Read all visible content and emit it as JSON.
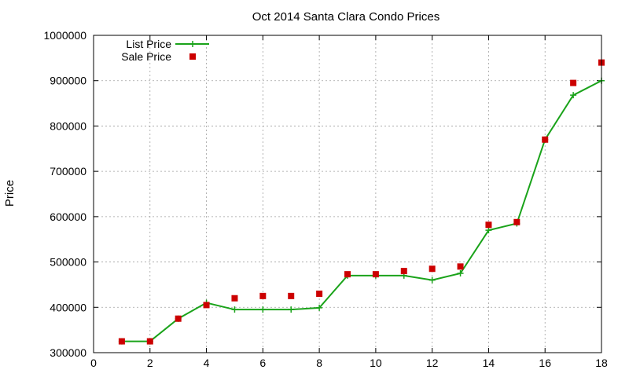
{
  "chart_data": {
    "type": "line",
    "title": "Oct 2014 Santa Clara Condo Prices",
    "xlabel": "",
    "ylabel": "Price",
    "xlim": [
      0,
      18
    ],
    "ylim": [
      300000,
      1000000
    ],
    "x_ticks": [
      0,
      2,
      4,
      6,
      8,
      10,
      12,
      14,
      16,
      18
    ],
    "y_ticks": [
      300000,
      400000,
      500000,
      600000,
      700000,
      800000,
      900000,
      1000000
    ],
    "grid": true,
    "legend_position": "top-left",
    "x": [
      1,
      2,
      3,
      4,
      5,
      6,
      7,
      8,
      9,
      10,
      11,
      12,
      13,
      14,
      15,
      16,
      17,
      18
    ],
    "series": [
      {
        "name": "List Price",
        "style": "line-points",
        "marker": "plus",
        "color": "#1aa31a",
        "values": [
          325000,
          325000,
          375000,
          410000,
          395000,
          395000,
          395000,
          399000,
          470000,
          470000,
          470000,
          460000,
          475000,
          570000,
          585000,
          770000,
          868000,
          900000
        ]
      },
      {
        "name": "Sale Price",
        "style": "points",
        "marker": "square",
        "color": "#cc0000",
        "values": [
          325000,
          325000,
          375000,
          405000,
          420000,
          425000,
          425000,
          430000,
          473000,
          473000,
          480000,
          485000,
          490000,
          582000,
          588000,
          770000,
          895000,
          940000
        ]
      }
    ]
  }
}
